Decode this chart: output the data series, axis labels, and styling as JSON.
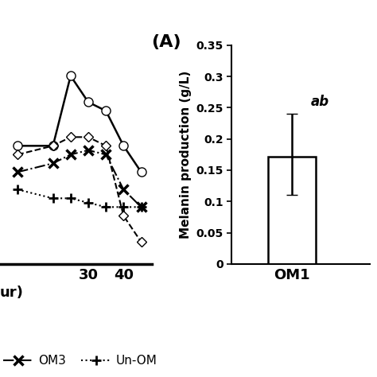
{
  "title_A": "(A)",
  "bar_ylabel": "Melanin production (g/L)",
  "bar_xlabel": "OM1",
  "bar_value": 0.172,
  "bar_error_upper": 0.068,
  "bar_error_lower": 0.062,
  "bar_ylim": [
    0,
    0.35
  ],
  "bar_yticks": [
    0,
    0.05,
    0.1,
    0.15,
    0.2,
    0.25,
    0.3,
    0.35
  ],
  "bar_annotation": "ab",
  "line_x": [
    10,
    20,
    25,
    30,
    35,
    40,
    45
  ],
  "line_circle": [
    0.265,
    0.265,
    0.345,
    0.315,
    0.305,
    0.265,
    0.235
  ],
  "line_diamond": [
    0.255,
    0.265,
    0.275,
    0.275,
    0.265,
    0.185,
    0.155
  ],
  "line_cross": [
    0.235,
    0.245,
    0.255,
    0.26,
    0.255,
    0.215,
    0.195
  ],
  "line_plus": [
    0.215,
    0.205,
    0.205,
    0.2,
    0.195,
    0.195,
    0.195
  ],
  "legend_OM3": "OM3",
  "legend_UnOM": "Un-OM",
  "background_color": "#ffffff",
  "line_xlim": [
    5,
    48
  ],
  "line_ylim": [
    0.13,
    0.38
  ]
}
